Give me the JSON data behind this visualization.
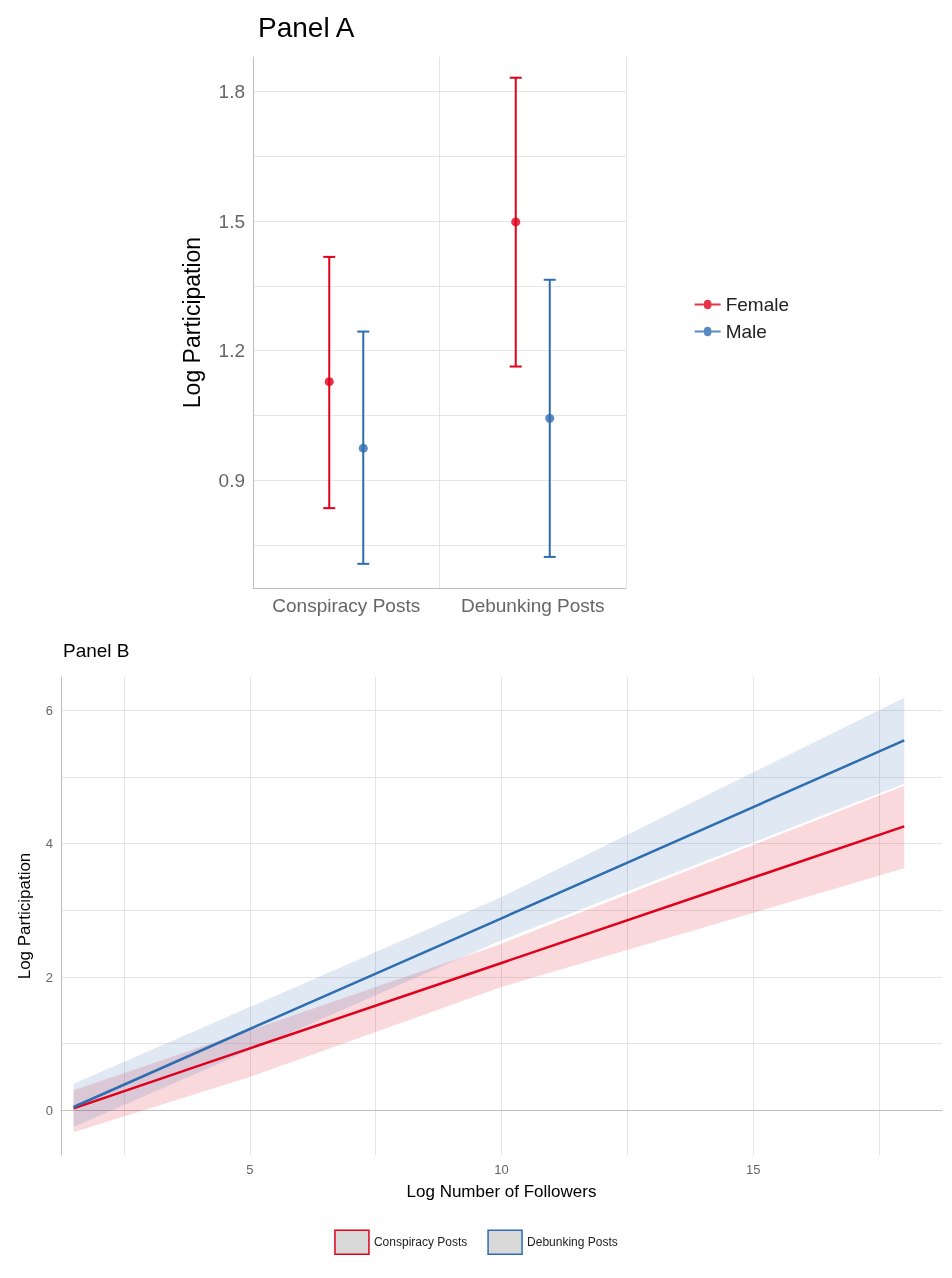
{
  "chart_data": [
    {
      "type": "scatter",
      "title": "Panel A",
      "ylabel": "Log Participation",
      "categories": [
        "Conspiracy Posts",
        "Debunking Posts"
      ],
      "series": [
        {
          "name": "Female",
          "color": "#e0001b",
          "values": [
            1.128,
            1.498
          ],
          "errors": [
            [
              0.835,
              1.417
            ],
            [
              1.163,
              1.832
            ]
          ]
        },
        {
          "name": "Male",
          "color": "#2f6db1",
          "values": [
            0.974,
            1.043
          ],
          "errors": [
            [
              0.706,
              1.244
            ],
            [
              0.722,
              1.364
            ]
          ]
        }
      ],
      "ylim": [
        0.65,
        1.88
      ],
      "yticks": [
        {
          "value": 0.75,
          "label": null
        },
        0.9,
        {
          "value": 1.05,
          "label": null
        },
        1.2,
        {
          "value": 1.35,
          "label": null
        },
        1.5,
        {
          "value": 1.65,
          "label": null
        },
        1.8
      ],
      "grid": true,
      "legend": "right",
      "marker": "circle"
    },
    {
      "type": "line",
      "title": "Panel B",
      "xlabel": "Log Number of Followers",
      "ylabel": "Log Participation",
      "series": [
        {
          "name": "Conspiracy Posts",
          "color": "#e0001b",
          "x": [
            1.5,
            5,
            10,
            18
          ],
          "values": [
            0.03,
            0.93,
            2.21,
            4.26
          ],
          "lower": [
            -0.33,
            0.5,
            1.85,
            3.63
          ],
          "upper": [
            0.3,
            1.2,
            2.5,
            4.87
          ]
        },
        {
          "name": "Debunking Posts",
          "color": "#2f6db1",
          "x": [
            1.5,
            5,
            10,
            18
          ],
          "values": [
            0.05,
            1.22,
            2.88,
            5.55
          ],
          "lower": [
            -0.25,
            0.9,
            2.55,
            4.9
          ],
          "upper": [
            0.4,
            1.55,
            3.2,
            6.19
          ]
        }
      ],
      "xlim": [
        1.25,
        18.75
      ],
      "xticks": [
        {
          "value": 2.5,
          "label": null
        },
        5,
        {
          "value": 7.5,
          "label": null
        },
        10,
        {
          "value": 12.5,
          "label": null
        },
        15,
        {
          "value": 17.5,
          "label": null
        }
      ],
      "ylim": [
        -0.67,
        6.5
      ],
      "yticks": [
        0,
        {
          "value": 1,
          "label": null
        },
        2,
        {
          "value": 3,
          "label": null
        },
        4,
        {
          "value": 5,
          "label": null
        },
        6
      ],
      "grid": true,
      "legend": "bottom",
      "marker": "none",
      "line_style": "solid"
    }
  ]
}
